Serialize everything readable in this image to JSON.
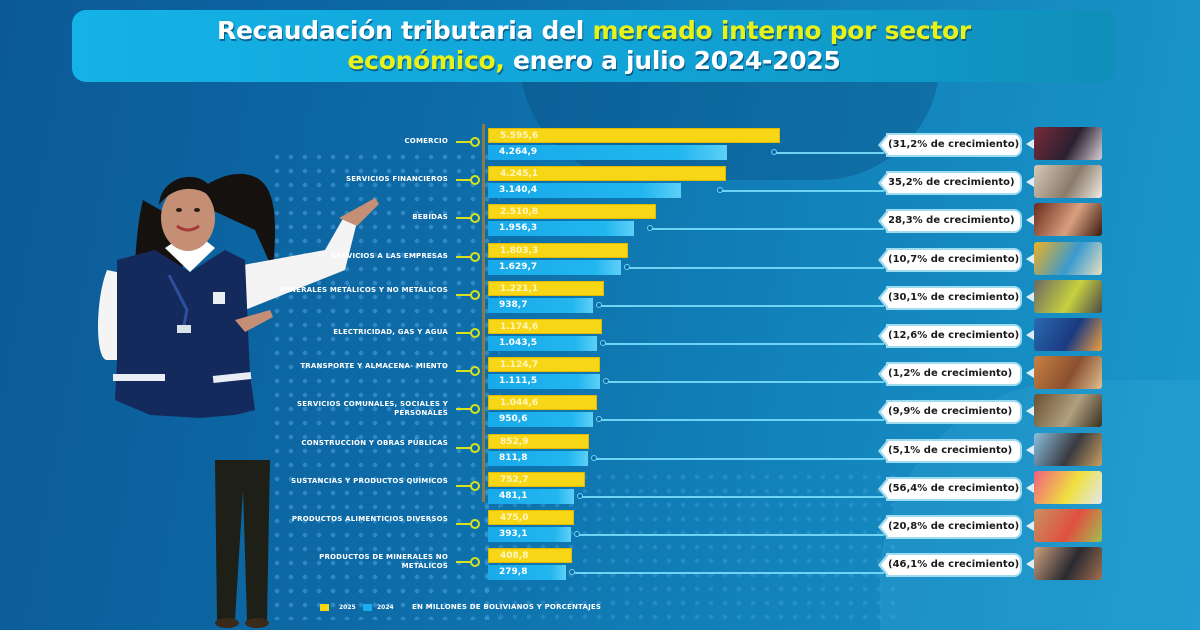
{
  "header": {
    "title_part1": "Recaudación tributaria del ",
    "title_part2": "mercado interno por sector",
    "title_part3": "económico,",
    "title_part4": " enero a julio 2024-2025"
  },
  "colors": {
    "series_2025": "#f7d616",
    "series_2024": "#1aacec",
    "highlight_text": "#e6f21a",
    "background": "#0d6aa6"
  },
  "chart_data": {
    "type": "bar",
    "orientation": "horizontal",
    "title": "Recaudación tributaria del mercado interno por sector económico, enero a julio 2024-2025",
    "units_note": "EN MILLONES DE BOLIVIANOS Y PORCENTAJES",
    "legend_position": "bottom-left",
    "categories": [
      "COMERCIO",
      "SERVICIOS FINANCIEROS",
      "BEBIDAS",
      "SERVICIOS A LAS EMPRESAS",
      "MINERALES METÁLICOS Y NO METÁLICOS",
      "ELECTRICIDAD, GAS Y AGUA",
      "TRANSPORTE Y ALMACENA- MIENTO",
      "SERVICIOS COMUNALES, SOCIALES Y PERSONALES",
      "CONSTRUCCIÓN Y OBRAS PÚBLICAS",
      "SUSTANCIAS Y PRODUCTOS QUÍMICOS",
      "PRODUCTOS ALIMENTICIOS DIVERSOS",
      "PRODUCTOS DE MINERALES NO METÁLICOS"
    ],
    "series": [
      {
        "name": "2025",
        "values": [
          5595.6,
          4245.1,
          2510.8,
          1803.3,
          1221.1,
          1174.6,
          1124.7,
          1044.6,
          852.9,
          752.7,
          475.0,
          408.8
        ],
        "labels": [
          "5.595,6",
          "4.245,1",
          "2.510,8",
          "1.803,3",
          "1.221,1",
          "1.174,6",
          "1.124,7",
          "1.044,6",
          "852,9",
          "752,7",
          "475,0",
          "408,8"
        ]
      },
      {
        "name": "2024",
        "values": [
          4264.9,
          3140.4,
          1956.3,
          1629.7,
          938.7,
          1043.5,
          1111.5,
          950.6,
          811.8,
          481.1,
          393.1,
          279.8
        ],
        "labels": [
          "4.264,9",
          "3.140,4",
          "1.956,3",
          "1.629,7",
          "938,7",
          "1.043,5",
          "1.111,5",
          "950,6",
          "811,8",
          "481,1",
          "393,1",
          "279,8"
        ]
      }
    ],
    "growth_pct": [
      31.2,
      35.2,
      28.3,
      10.7,
      30.1,
      12.6,
      1.2,
      9.9,
      5.1,
      56.4,
      20.8,
      46.1
    ],
    "growth_labels": [
      "(31,2% de crecimiento)",
      "35,2% de crecimiento)",
      "28,3% de crecimiento)",
      "(10,7% de crecimiento)",
      "(30,1% de crecimiento)",
      "(12,6% de crecimiento)",
      "(1,2% de crecimiento)",
      "(9,9% de crecimiento)",
      "(5,1% de crecimiento)",
      "(56,4% de crecimiento)",
      "(20,8% de crecimiento)",
      "(46,1% de crecimiento)"
    ],
    "thumbnail_icons": [
      "store-products-photo",
      "finance-paperwork-photo",
      "beverages-bottles-photo",
      "business-services-photo",
      "minerals-photo",
      "electricity-gas-water-photo",
      "transport-truck-photo",
      "community-services-photo",
      "road-construction-photo",
      "chemical-products-photo",
      "food-products-photo",
      "non-metallic-minerals-photo"
    ],
    "legend": [
      "2025",
      "2024"
    ]
  }
}
